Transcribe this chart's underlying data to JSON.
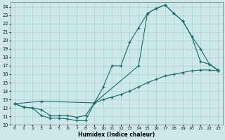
{
  "xlabel": "Humidex (Indice chaleur)",
  "bg_color": "#cce8e8",
  "grid_color": "#aad0d0",
  "line_color": "#1a6b6b",
  "xlim": [
    -0.5,
    23.5
  ],
  "ylim": [
    10,
    24.5
  ],
  "xticks": [
    0,
    1,
    2,
    3,
    4,
    5,
    6,
    7,
    8,
    9,
    10,
    11,
    12,
    13,
    14,
    15,
    16,
    17,
    18,
    19,
    20,
    21,
    22,
    23
  ],
  "yticks": [
    10,
    11,
    12,
    13,
    14,
    15,
    16,
    17,
    18,
    19,
    20,
    21,
    22,
    23,
    24
  ],
  "line1_x": [
    0,
    1,
    2,
    3,
    4,
    5,
    6,
    7,
    8,
    9,
    10,
    11,
    12,
    13,
    14,
    15,
    16,
    17,
    18,
    19,
    20,
    21,
    22,
    23
  ],
  "line1_y": [
    12.5,
    12.1,
    12.0,
    11.1,
    10.8,
    10.8,
    10.7,
    10.5,
    10.5,
    12.6,
    13.0,
    13.3,
    13.6,
    14.0,
    14.5,
    15.0,
    15.4,
    15.8,
    16.0,
    16.2,
    16.4,
    16.5,
    16.5,
    16.4
  ],
  "line2_x": [
    0,
    1,
    2,
    3,
    4,
    5,
    6,
    7,
    8,
    9,
    10,
    11,
    12,
    13,
    14,
    15,
    16,
    17,
    18,
    19,
    20,
    21,
    22,
    23
  ],
  "line2_y": [
    12.5,
    12.1,
    12.0,
    11.8,
    11.1,
    11.1,
    11.1,
    10.9,
    11.1,
    12.6,
    14.5,
    17.0,
    17.0,
    19.8,
    21.5,
    23.2,
    23.8,
    24.2,
    23.2,
    22.3,
    20.5,
    19.0,
    17.2,
    16.5
  ],
  "line3_x": [
    0,
    3,
    9,
    14,
    15,
    16,
    17,
    18,
    19,
    20,
    21,
    22,
    23
  ],
  "line3_y": [
    12.5,
    12.8,
    12.6,
    17.0,
    23.2,
    23.8,
    24.2,
    23.2,
    22.3,
    20.5,
    17.5,
    17.2,
    16.4
  ]
}
